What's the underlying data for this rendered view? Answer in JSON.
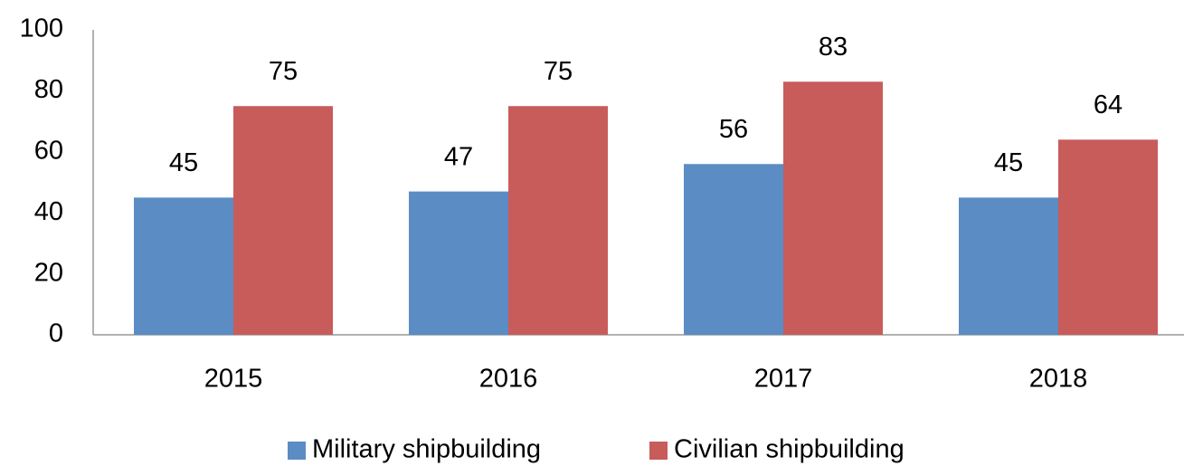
{
  "chart_data": {
    "type": "bar",
    "categories": [
      "2015",
      "2016",
      "2017",
      "2018"
    ],
    "series": [
      {
        "name": "Military shipbuilding",
        "color": "#5b8cc4",
        "values": [
          45,
          47,
          56,
          45
        ]
      },
      {
        "name": "Civilian shipbuilding",
        "color": "#c85c5a",
        "values": [
          75,
          75,
          83,
          64
        ]
      }
    ],
    "ylim": [
      0,
      100
    ],
    "yticks": [
      0,
      20,
      40,
      60,
      80,
      100
    ],
    "grid": false,
    "legend": "bottom"
  }
}
